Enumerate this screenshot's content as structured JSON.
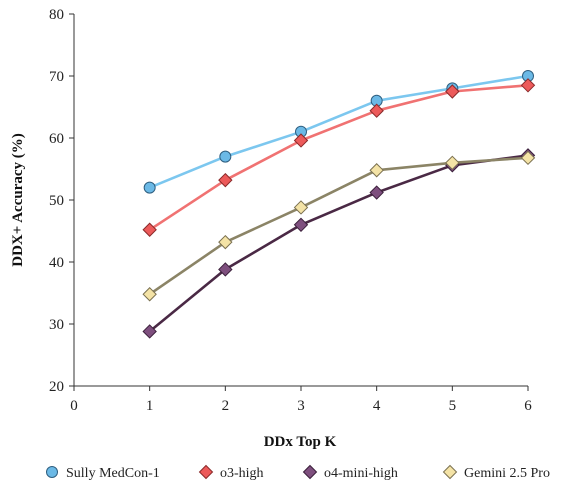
{
  "chart_data": {
    "type": "line",
    "title": "",
    "xlabel": "DDx Top K",
    "ylabel": "DDX+ Accuracy (%)",
    "xlim": [
      0,
      6
    ],
    "ylim": [
      20,
      80
    ],
    "xticks": [
      0,
      1,
      2,
      3,
      4,
      5,
      6
    ],
    "yticks": [
      20,
      30,
      40,
      50,
      60,
      70,
      80
    ],
    "grid": false,
    "legend_position": "bottom",
    "x": [
      1,
      2,
      3,
      4,
      5,
      6
    ],
    "series": [
      {
        "name": "Sully MedCon-1",
        "marker": "circle",
        "line_color": "#7cc7ef",
        "marker_fill": "#6bb9e6",
        "marker_stroke": "#2f5f80",
        "values": [
          52,
          57,
          61,
          66,
          68,
          70
        ]
      },
      {
        "name": "o3-high",
        "marker": "diamond",
        "line_color": "#f07272",
        "marker_fill": "#ec5a5a",
        "marker_stroke": "#8a2a2a",
        "values": [
          45.2,
          53.2,
          59.6,
          64.4,
          67.5,
          68.5
        ]
      },
      {
        "name": "o4-mini-high",
        "marker": "diamond",
        "line_color": "#4a2945",
        "marker_fill": "#7e4f7e",
        "marker_stroke": "#3a1f3a",
        "values": [
          28.8,
          38.8,
          46,
          51.2,
          55.6,
          57.2
        ]
      },
      {
        "name": "Gemini 2.5 Pro",
        "marker": "diamond",
        "line_color": "#8b8466",
        "marker_fill": "#f4e3a6",
        "marker_stroke": "#7a7050",
        "values": [
          34.8,
          43.2,
          48.8,
          54.8,
          56,
          56.8
        ]
      }
    ]
  }
}
